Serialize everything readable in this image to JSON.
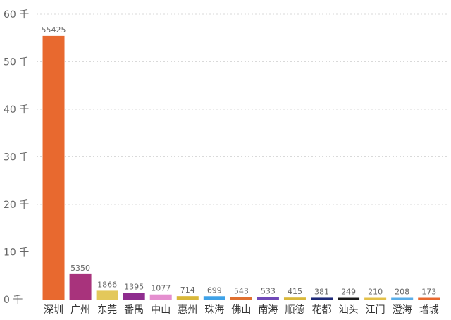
{
  "chart_data": {
    "type": "bar",
    "categories": [
      "深圳",
      "广州",
      "东莞",
      "番禺",
      "中山",
      "惠州",
      "珠海",
      "佛山",
      "南海",
      "顺德",
      "花都",
      "汕头",
      "江门",
      "澄海",
      "增城"
    ],
    "values": [
      55425,
      5350,
      1866,
      1395,
      1077,
      714,
      699,
      543,
      533,
      415,
      381,
      249,
      210,
      208,
      173
    ],
    "bar_colors": [
      "#E8692F",
      "#A8337C",
      "#E3C85A",
      "#8F2D8F",
      "#E58FCF",
      "#D9B83A",
      "#3EA2E8",
      "#E07030",
      "#7049B8",
      "#D9B83A",
      "#1F2A78",
      "#1A1A1A",
      "#E3C048",
      "#5AAEE8",
      "#E8692F"
    ],
    "ylim": [
      0,
      60000
    ],
    "yticks": [
      0,
      10000,
      20000,
      30000,
      40000,
      50000,
      60000
    ],
    "ytick_labels": [
      "0 千",
      "10 千",
      "20 千",
      "30 千",
      "40 千",
      "50 千",
      "60 千"
    ],
    "grid": true,
    "data_labels": true
  }
}
